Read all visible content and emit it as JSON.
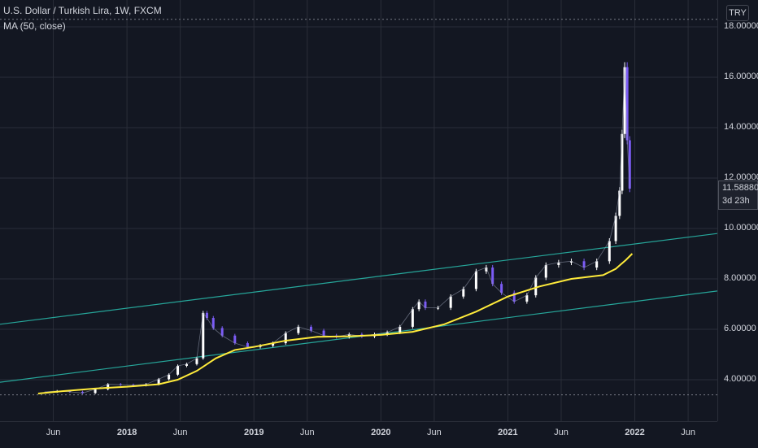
{
  "legend": {
    "title": "U.S. Dollar / Turkish Lira, 1W, FXCM",
    "indicator": "MA (50, close)"
  },
  "currency": "TRY",
  "last_price": {
    "value": "11.58880",
    "countdown": "3d 23h"
  },
  "colors": {
    "background": "#131722",
    "grid": "#2a2e39",
    "candle_up": "#ffffff",
    "candle_down": "#7b5cf5",
    "ma": "#ffeb3b",
    "channel": "#26a69a"
  },
  "chart_data": {
    "type": "line",
    "title": "U.S. Dollar / Turkish Lira, 1W, FXCM",
    "xlabel": "",
    "ylabel": "",
    "ylim": [
      2.5,
      18.8
    ],
    "y_ticks": [
      "4.00000",
      "6.00000",
      "8.00000",
      "10.00000",
      "12.00000",
      "14.00000",
      "16.00000",
      "18.00000"
    ],
    "x_ticks": [
      "Jun",
      "2018",
      "Jun",
      "2019",
      "Jun",
      "2020",
      "Jun",
      "2021",
      "Jun",
      "2022",
      "Jun"
    ],
    "grid": true,
    "series": [
      {
        "name": "U.S. Dollar / Turkish Lira",
        "x": [
          2017.35,
          2017.45,
          2017.55,
          2017.65,
          2017.75,
          2017.85,
          2017.95,
          2018.05,
          2018.15,
          2018.25,
          2018.33,
          2018.4,
          2018.47,
          2018.55,
          2018.6,
          2018.63,
          2018.68,
          2018.75,
          2018.85,
          2018.95,
          2019.05,
          2019.15,
          2019.25,
          2019.35,
          2019.45,
          2019.55,
          2019.65,
          2019.75,
          2019.85,
          2019.95,
          2020.05,
          2020.15,
          2020.25,
          2020.3,
          2020.35,
          2020.45,
          2020.55,
          2020.65,
          2020.75,
          2020.83,
          2020.88,
          2020.95,
          2021.05,
          2021.15,
          2021.22,
          2021.3,
          2021.4,
          2021.5,
          2021.6,
          2021.7,
          2021.8,
          2021.85,
          2021.88,
          2021.9,
          2021.92,
          2021.94,
          2021.96
        ],
        "values": [
          3.52,
          3.55,
          3.52,
          3.47,
          3.62,
          3.82,
          3.8,
          3.78,
          3.82,
          4.02,
          4.2,
          4.55,
          4.62,
          4.85,
          6.65,
          6.45,
          6.05,
          5.75,
          5.45,
          5.3,
          5.35,
          5.45,
          5.85,
          6.1,
          5.95,
          5.75,
          5.7,
          5.8,
          5.72,
          5.8,
          5.88,
          6.1,
          6.8,
          7.1,
          6.85,
          6.85,
          7.3,
          7.6,
          8.3,
          8.45,
          7.8,
          7.45,
          7.1,
          7.35,
          8.05,
          8.55,
          8.65,
          8.7,
          8.45,
          8.7,
          9.5,
          10.5,
          11.5,
          13.75,
          16.4,
          13.5,
          11.58
        ]
      },
      {
        "name": "MA (50, close)",
        "x": [
          2017.3,
          2017.5,
          2017.75,
          2018.0,
          2018.25,
          2018.4,
          2018.55,
          2018.7,
          2018.85,
          2019.0,
          2019.25,
          2019.5,
          2019.75,
          2020.0,
          2020.25,
          2020.5,
          2020.75,
          2021.0,
          2021.25,
          2021.5,
          2021.75,
          2021.85,
          2021.93,
          2021.98
        ],
        "values": [
          3.45,
          3.55,
          3.65,
          3.72,
          3.82,
          4.0,
          4.35,
          4.85,
          5.18,
          5.3,
          5.55,
          5.7,
          5.72,
          5.78,
          5.9,
          6.2,
          6.7,
          7.3,
          7.7,
          8.0,
          8.15,
          8.4,
          8.75,
          9.0
        ]
      },
      {
        "name": "",
        "x": [
          2017.0,
          2022.65
        ],
        "values": [
          6.2,
          9.8
        ]
      },
      {
        "name": "",
        "x": [
          2017.0,
          2022.65
        ],
        "values": [
          3.9,
          7.52
        ]
      }
    ]
  }
}
